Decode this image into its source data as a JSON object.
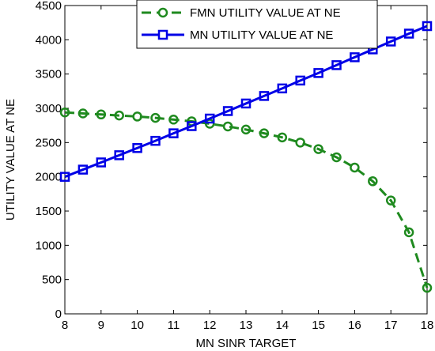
{
  "chart_data": {
    "type": "line",
    "xlabel": "MN SINR TARGET",
    "ylabel": "UTILITY VALUE AT NE",
    "xlim": [
      8,
      18
    ],
    "ylim": [
      0,
      4500
    ],
    "xticks": [
      8,
      9,
      10,
      11,
      12,
      13,
      14,
      15,
      16,
      17,
      18
    ],
    "yticks": [
      0,
      500,
      1000,
      1500,
      2000,
      2500,
      3000,
      3500,
      4000,
      4500
    ],
    "grid": false,
    "legend_position": "top-right",
    "x": [
      8,
      8.5,
      9,
      9.5,
      10,
      10.5,
      11,
      11.5,
      12,
      12.5,
      13,
      13.5,
      14,
      14.5,
      15,
      15.5,
      16,
      16.5,
      17,
      17.5,
      18
    ],
    "series": [
      {
        "name": "FMN UTILITY VALUE AT NE",
        "color": "#1f8a1f",
        "line_style": "dashed",
        "marker": "circle",
        "values": [
          2940,
          2925,
          2910,
          2895,
          2880,
          2860,
          2835,
          2810,
          2775,
          2735,
          2690,
          2635,
          2575,
          2500,
          2405,
          2285,
          2135,
          1935,
          1655,
          1190,
          380
        ]
      },
      {
        "name": "MN UTILITY VALUE AT NE",
        "color": "#0000e6",
        "line_style": "solid",
        "marker": "square",
        "values": [
          2000,
          2105,
          2210,
          2315,
          2420,
          2525,
          2635,
          2740,
          2850,
          2960,
          3070,
          3180,
          3290,
          3405,
          3515,
          3630,
          3745,
          3860,
          3975,
          4090,
          4200
        ]
      }
    ]
  }
}
